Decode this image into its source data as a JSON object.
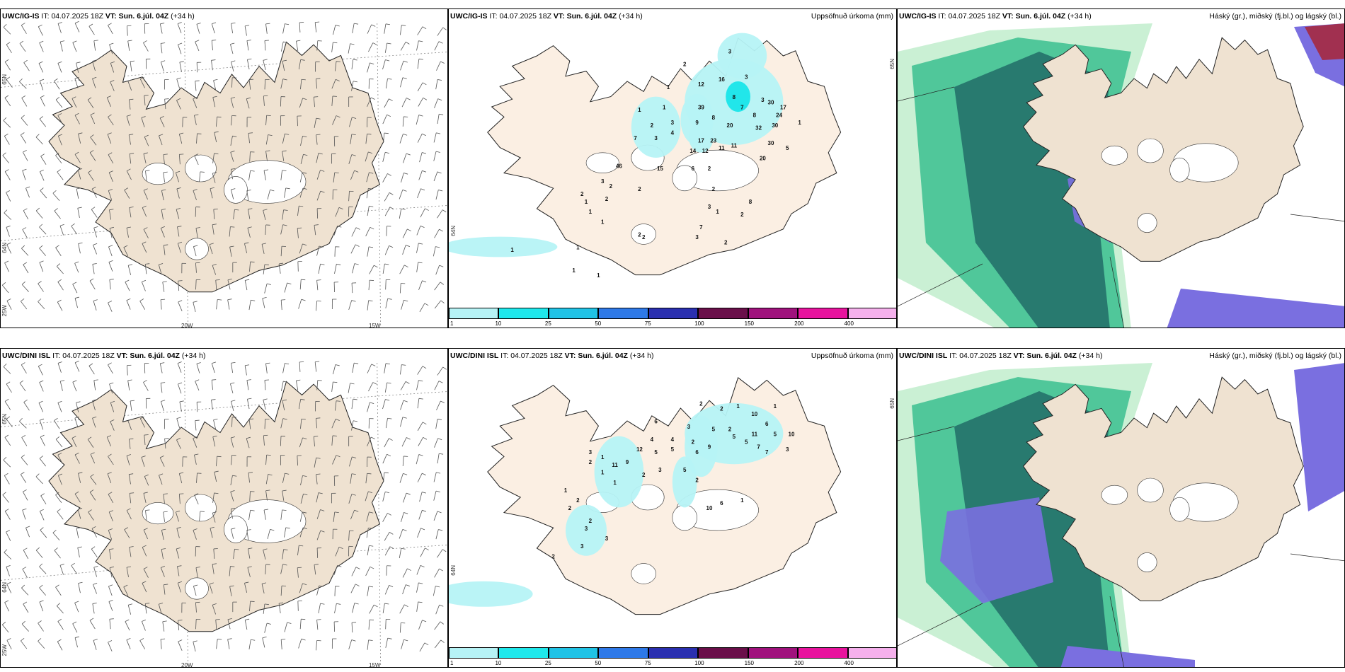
{
  "colors": {
    "land": "#efe2d1",
    "land_light": "#fbefe3",
    "sea": "#ffffff",
    "coast": "#222222",
    "precip_light": "#b6f3f6",
    "precip_mid": "#22e6ea",
    "cloud_high": "#7a6fe0",
    "cloud_mid": "#3bbf8f",
    "cloud_mid_dark": "#24716a",
    "cloud_low": "#9fe3b0",
    "cloud_top_red": "#a13050"
  },
  "panels": [
    {
      "model": "UWC/IG-IS",
      "it_label": "IT:",
      "it_value": "04.07.2025 18Z",
      "vt_label": "VT:",
      "vt_value": "Sun. 6.júl. 04Z",
      "lead": "(+34 h)",
      "type": "wind",
      "axis": {
        "lat_top": "65N",
        "lat_bottom": "64N",
        "lon_left": "20W",
        "lon_right": "15W",
        "corner": "25W"
      }
    },
    {
      "model": "UWC/IG-IS",
      "it_label": "IT:",
      "it_value": "04.07.2025 18Z",
      "vt_label": "VT:",
      "vt_value": "Sun. 6.júl. 04Z",
      "lead": "(+34 h)",
      "type": "precip",
      "title_right": "Uppsöfnuð úrkoma (mm)",
      "axis": {
        "lat_top": "65N",
        "lat_bottom": "64N"
      },
      "labels": [
        "3",
        "2",
        "1",
        "12",
        "16",
        "3",
        "39",
        "8",
        "3",
        "7",
        "30",
        "17",
        "8",
        "1",
        "1",
        "2",
        "3",
        "9",
        "8",
        "20",
        "32",
        "30",
        "24",
        "1",
        "7",
        "3",
        "4",
        "17",
        "23",
        "11",
        "30",
        "5",
        "14",
        "12",
        "11",
        "20",
        "46",
        "15",
        "6",
        "2",
        "3",
        "2",
        "2",
        "1",
        "2",
        "1",
        "1",
        "2",
        "2",
        "3",
        "1",
        "2",
        "8",
        "7",
        "3",
        "2",
        "2",
        "1",
        "2",
        "1",
        "1",
        "1"
      ]
    },
    {
      "model": "UWC/IG-IS",
      "it_label": "IT:",
      "it_value": "04.07.2025 18Z",
      "vt_label": "VT:",
      "vt_value": "Sun. 6.júl. 04Z",
      "lead": "(+34 h)",
      "type": "cloud",
      "title_right": "Háský (gr.), miðský (fj.bl.) og lágský (bl.)"
    },
    {
      "model": "UWC/DINI ISL",
      "it_label": "IT:",
      "it_value": "04.07.2025 18Z",
      "vt_label": "VT:",
      "vt_value": "Sun. 6.júl. 04Z",
      "lead": "(+34 h)",
      "type": "wind",
      "axis": {
        "lat_top": "65N",
        "lat_bottom": "64N",
        "lon_left": "20W",
        "lon_right": "15W",
        "corner": "25W"
      }
    },
    {
      "model": "UWC/DINI ISL",
      "it_label": "IT:",
      "it_value": "04.07.2025 18Z",
      "vt_label": "VT:",
      "vt_value": "Sun. 6.júl. 04Z",
      "lead": "(+34 h)",
      "type": "precip",
      "title_right": "Uppsöfnuð úrkoma (mm)",
      "axis": {
        "lat_top": "65N",
        "lat_bottom": "64N"
      },
      "labels": [
        "2",
        "2",
        "1",
        "10",
        "1",
        "6",
        "3",
        "5",
        "2",
        "11",
        "6",
        "5",
        "4",
        "10",
        "4",
        "2",
        "9",
        "5",
        "5",
        "7",
        "7",
        "3",
        "3",
        "12",
        "5",
        "5",
        "6",
        "2",
        "1",
        "11",
        "9",
        "1",
        "1",
        "2",
        "3",
        "5",
        "2",
        "1",
        "2",
        "2",
        "10",
        "6",
        "1",
        "2",
        "3",
        "3",
        "3",
        "2"
      ]
    },
    {
      "model": "UWC/DINI ISL",
      "it_label": "IT:",
      "it_value": "04.07.2025 18Z",
      "vt_label": "VT:",
      "vt_value": "Sun. 6.júl. 04Z",
      "lead": "(+34 h)",
      "type": "cloud",
      "title_right": "Háský (gr.), miðský (fj.bl.) og lágský (bl.)"
    }
  ],
  "colorbar": {
    "ticks": [
      "1",
      "10",
      "25",
      "50",
      "75",
      "100",
      "150",
      "200",
      "400"
    ],
    "colors": [
      "#b6f3f6",
      "#1fe8ec",
      "#20c3e6",
      "#2e79e8",
      "#2a2fb0",
      "#6a0f4a",
      "#a0127d",
      "#e8139e",
      "#f5b0ec"
    ]
  }
}
